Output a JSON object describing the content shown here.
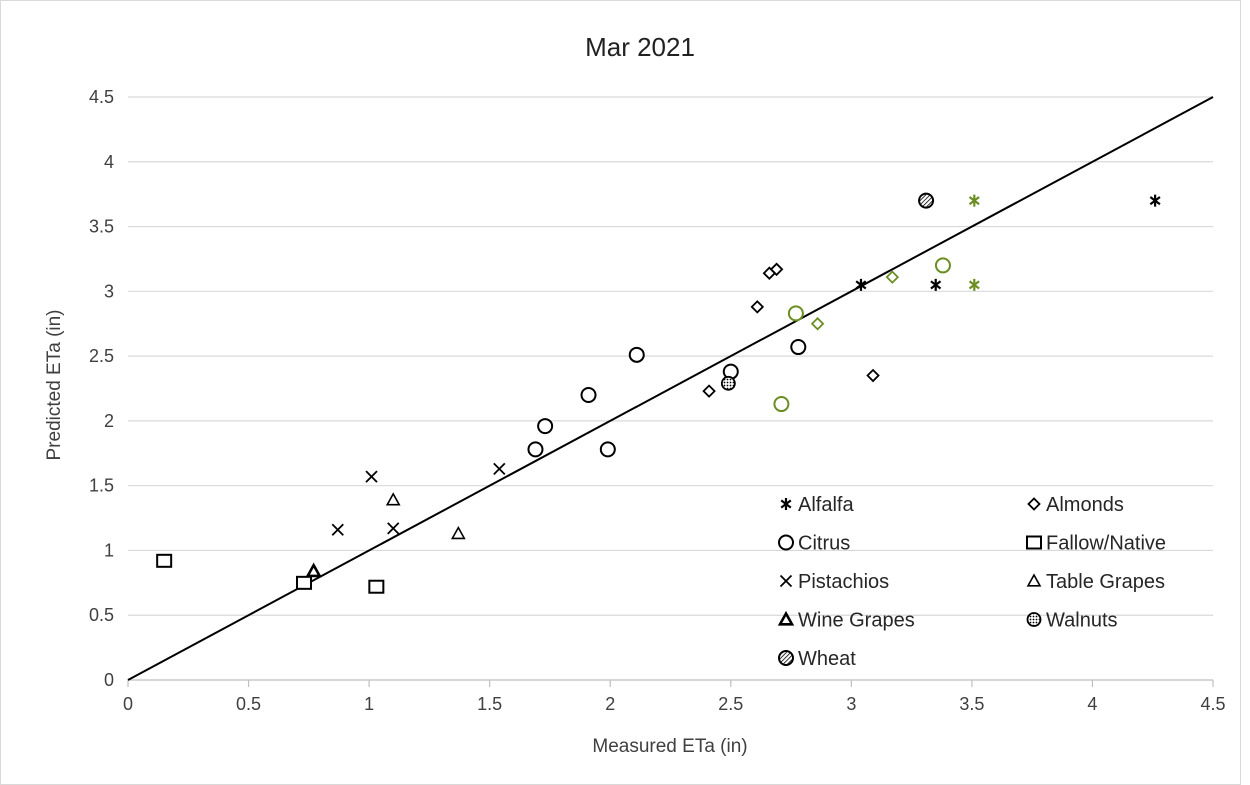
{
  "colors": {
    "background": "#ffffff",
    "grid": "#d9d9d9",
    "marker_black": "#000000",
    "marker_green": "#6b8e23"
  },
  "chart_data": {
    "type": "scatter",
    "title": "Mar 2021",
    "xlabel": "Measured ETa (in)",
    "ylabel": "Predicted ETa (in)",
    "xlim": [
      0,
      4.5
    ],
    "ylim": [
      0,
      4.5
    ],
    "x_ticks": [
      "0",
      "0.5",
      "1",
      "1.5",
      "2",
      "2.5",
      "3",
      "3.5",
      "4",
      "4.5"
    ],
    "y_ticks": [
      "0",
      "0.5",
      "1",
      "1.5",
      "2",
      "2.5",
      "3",
      "3.5",
      "4",
      "4.5"
    ],
    "grid": "horizontal",
    "legend_position": "bottom-right",
    "reference_line": {
      "type": "1:1",
      "from": [
        0,
        0
      ],
      "to": [
        4.5,
        4.5
      ]
    },
    "legend": [
      {
        "name": "Alfalfa",
        "marker": "asterisk-icon"
      },
      {
        "name": "Almonds",
        "marker": "diamond-icon"
      },
      {
        "name": "Citrus",
        "marker": "circle-icon"
      },
      {
        "name": "Fallow/Native",
        "marker": "square-icon"
      },
      {
        "name": "Pistachios",
        "marker": "cross-icon"
      },
      {
        "name": "Table Grapes",
        "marker": "triangle-icon"
      },
      {
        "name": "Wine Grapes",
        "marker": "triangle-bold-icon"
      },
      {
        "name": "Walnuts",
        "marker": "dotted-circle-icon"
      },
      {
        "name": "Wheat",
        "marker": "hatched-circle-icon"
      }
    ],
    "series": [
      {
        "name": "Alfalfa",
        "marker": "asterisk",
        "points": [
          {
            "x": 3.04,
            "y": 3.05,
            "color": "black"
          },
          {
            "x": 3.35,
            "y": 3.05,
            "color": "black"
          },
          {
            "x": 4.26,
            "y": 3.7,
            "color": "black"
          },
          {
            "x": 3.51,
            "y": 3.7,
            "color": "green"
          },
          {
            "x": 3.51,
            "y": 3.05,
            "color": "green"
          }
        ]
      },
      {
        "name": "Almonds",
        "marker": "diamond",
        "points": [
          {
            "x": 2.41,
            "y": 2.23,
            "color": "black"
          },
          {
            "x": 2.61,
            "y": 2.88,
            "color": "black"
          },
          {
            "x": 2.66,
            "y": 3.14,
            "color": "black"
          },
          {
            "x": 2.69,
            "y": 3.17,
            "color": "black"
          },
          {
            "x": 3.09,
            "y": 2.35,
            "color": "black"
          },
          {
            "x": 2.86,
            "y": 2.75,
            "color": "green"
          },
          {
            "x": 3.17,
            "y": 3.11,
            "color": "green"
          }
        ]
      },
      {
        "name": "Citrus",
        "marker": "circle",
        "points": [
          {
            "x": 1.69,
            "y": 1.78,
            "color": "black"
          },
          {
            "x": 1.73,
            "y": 1.96,
            "color": "black"
          },
          {
            "x": 1.91,
            "y": 2.2,
            "color": "black"
          },
          {
            "x": 1.99,
            "y": 1.78,
            "color": "black"
          },
          {
            "x": 2.11,
            "y": 2.51,
            "color": "black"
          },
          {
            "x": 2.5,
            "y": 2.38,
            "color": "black"
          },
          {
            "x": 2.78,
            "y": 2.57,
            "color": "black"
          },
          {
            "x": 2.77,
            "y": 2.83,
            "color": "green"
          },
          {
            "x": 2.71,
            "y": 2.13,
            "color": "green"
          },
          {
            "x": 3.38,
            "y": 3.2,
            "color": "green"
          }
        ]
      },
      {
        "name": "Fallow/Native",
        "marker": "square",
        "points": [
          {
            "x": 0.15,
            "y": 0.92,
            "color": "black"
          },
          {
            "x": 0.73,
            "y": 0.75,
            "color": "black"
          },
          {
            "x": 1.03,
            "y": 0.72,
            "color": "black"
          }
        ]
      },
      {
        "name": "Pistachios",
        "marker": "cross",
        "points": [
          {
            "x": 0.87,
            "y": 1.16,
            "color": "black"
          },
          {
            "x": 1.01,
            "y": 1.57,
            "color": "black"
          },
          {
            "x": 1.1,
            "y": 1.17,
            "color": "black"
          },
          {
            "x": 1.54,
            "y": 1.63,
            "color": "black"
          }
        ]
      },
      {
        "name": "Table Grapes",
        "marker": "triangle",
        "points": [
          {
            "x": 1.1,
            "y": 1.39,
            "color": "black"
          },
          {
            "x": 1.37,
            "y": 1.13,
            "color": "black"
          }
        ]
      },
      {
        "name": "Wine Grapes",
        "marker": "triangle-bold",
        "points": [
          {
            "x": 0.77,
            "y": 0.84,
            "color": "black"
          }
        ]
      },
      {
        "name": "Walnuts",
        "marker": "dotted-circle",
        "points": [
          {
            "x": 2.49,
            "y": 2.29,
            "color": "black"
          }
        ]
      },
      {
        "name": "Wheat",
        "marker": "hatched-circle",
        "points": [
          {
            "x": 3.31,
            "y": 3.7,
            "color": "black"
          }
        ]
      }
    ]
  }
}
